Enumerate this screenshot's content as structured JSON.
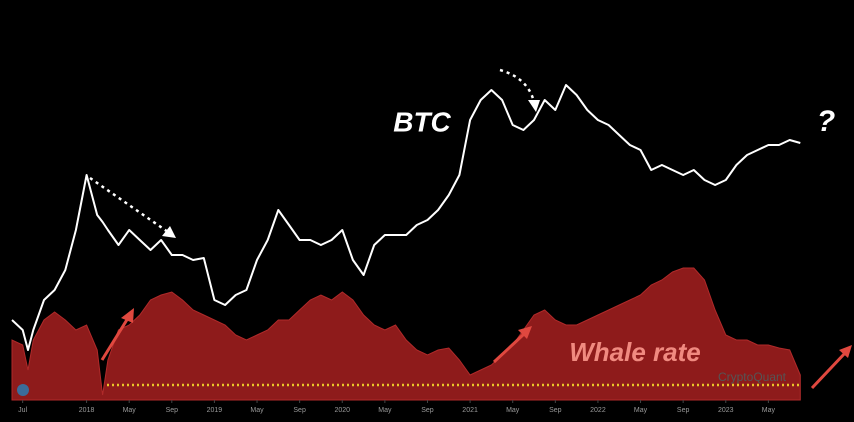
{
  "chart_data": {
    "type": "line-area",
    "x": [
      -1,
      0,
      0.5,
      1,
      2,
      3,
      4,
      5,
      6,
      7,
      7.5,
      8,
      9,
      10,
      11,
      12,
      13,
      14,
      15,
      16,
      17,
      18,
      19,
      20,
      21,
      22,
      23,
      24,
      25,
      26,
      27,
      28,
      29,
      30,
      31,
      32,
      33,
      34,
      35,
      36,
      37,
      38,
      39,
      40,
      41,
      42,
      43,
      44,
      45,
      46,
      47,
      48,
      49,
      50,
      51,
      52,
      53,
      54,
      55,
      56,
      57,
      58,
      59,
      60,
      61,
      62,
      63,
      64,
      65,
      66,
      67,
      68,
      69,
      70,
      71,
      72,
      73
    ],
    "series": [
      {
        "name": "BTC",
        "kind": "line",
        "color": "#ffffff",
        "values": [
          80,
          70,
          50,
          70,
          100,
          110,
          130,
          170,
          225,
          185,
          178,
          170,
          155,
          170,
          160,
          150,
          160,
          145,
          145,
          140,
          142,
          100,
          95,
          105,
          110,
          140,
          160,
          190,
          175,
          160,
          160,
          155,
          160,
          170,
          140,
          125,
          155,
          165,
          165,
          165,
          175,
          180,
          190,
          205,
          225,
          280,
          300,
          310,
          300,
          275,
          270,
          280,
          300,
          290,
          315,
          305,
          290,
          280,
          275,
          265,
          255,
          250,
          230,
          235,
          230,
          225,
          230,
          220,
          215,
          220,
          235,
          245,
          250,
          255,
          255,
          260,
          257
        ]
      },
      {
        "name": "Whale rate",
        "kind": "area",
        "color": "#8e1b1b",
        "values": [
          60,
          55,
          30,
          60,
          80,
          88,
          80,
          70,
          75,
          50,
          5,
          40,
          70,
          75,
          85,
          100,
          105,
          108,
          100,
          90,
          85,
          80,
          75,
          65,
          60,
          65,
          70,
          80,
          80,
          90,
          100,
          105,
          100,
          108,
          100,
          85,
          75,
          70,
          75,
          60,
          50,
          45,
          50,
          52,
          40,
          25,
          30,
          35,
          45,
          55,
          70,
          85,
          90,
          80,
          75,
          75,
          80,
          85,
          90,
          95,
          100,
          105,
          115,
          120,
          128,
          132,
          132,
          120,
          90,
          65,
          60,
          60,
          55,
          55,
          52,
          50,
          25
        ]
      }
    ],
    "threshold": {
      "value": 15,
      "color": "#e8c62a"
    },
    "xlim": [
      -1,
      74
    ],
    "ylim": [
      0,
      360
    ],
    "xticks": [
      {
        "value": 0,
        "label": "Jul"
      },
      {
        "value": 6,
        "label": "2018"
      },
      {
        "value": 10,
        "label": "May"
      },
      {
        "value": 14,
        "label": "Sep"
      },
      {
        "value": 18,
        "label": "2019"
      },
      {
        "value": 22,
        "label": "May"
      },
      {
        "value": 26,
        "label": "Sep"
      },
      {
        "value": 30,
        "label": "2020"
      },
      {
        "value": 34,
        "label": "May"
      },
      {
        "value": 38,
        "label": "Sep"
      },
      {
        "value": 42,
        "label": "2021"
      },
      {
        "value": 46,
        "label": "May"
      },
      {
        "value": 50,
        "label": "Sep"
      },
      {
        "value": 54,
        "label": "2022"
      },
      {
        "value": 58,
        "label": "May"
      },
      {
        "value": 62,
        "label": "Sep"
      },
      {
        "value": 66,
        "label": "2023"
      },
      {
        "value": 70,
        "label": "May"
      }
    ],
    "question_mark": "?",
    "watermark": "CryptoQuant"
  }
}
